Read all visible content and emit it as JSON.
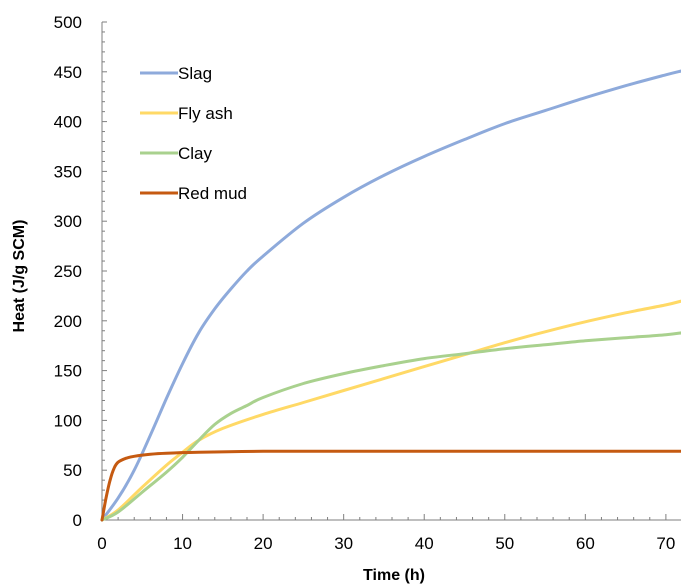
{
  "chart_data": {
    "type": "line",
    "xlabel": "Time (h)",
    "ylabel": "Heat  (J/g SCM)",
    "xlim": [
      0,
      72
    ],
    "ylim": [
      0,
      500
    ],
    "xticks": [
      0,
      10,
      20,
      30,
      40,
      50,
      60,
      70
    ],
    "yticks": [
      0,
      50,
      100,
      150,
      200,
      250,
      300,
      350,
      400,
      450,
      500
    ],
    "grid": false,
    "legend_position": "top-left",
    "series": [
      {
        "name": "Slag",
        "color": "#8eaadb",
        "points": [
          [
            0,
            0
          ],
          [
            2,
            22
          ],
          [
            4,
            50
          ],
          [
            6,
            85
          ],
          [
            8,
            122
          ],
          [
            10,
            157
          ],
          [
            12,
            188
          ],
          [
            14,
            212
          ],
          [
            16,
            232
          ],
          [
            18,
            250
          ],
          [
            20,
            265
          ],
          [
            25,
            298
          ],
          [
            30,
            324
          ],
          [
            35,
            346
          ],
          [
            40,
            365
          ],
          [
            45,
            382
          ],
          [
            50,
            398
          ],
          [
            55,
            411
          ],
          [
            60,
            424
          ],
          [
            65,
            436
          ],
          [
            70,
            447
          ],
          [
            72,
            451
          ]
        ]
      },
      {
        "name": "Fly ash",
        "color": "#ffd966",
        "points": [
          [
            0,
            0
          ],
          [
            2,
            10
          ],
          [
            5,
            33
          ],
          [
            8,
            55
          ],
          [
            10,
            68
          ],
          [
            12,
            80
          ],
          [
            15,
            92
          ],
          [
            20,
            106
          ],
          [
            25,
            118
          ],
          [
            30,
            130
          ],
          [
            35,
            142
          ],
          [
            40,
            154
          ],
          [
            45,
            166
          ],
          [
            50,
            178
          ],
          [
            55,
            189
          ],
          [
            60,
            199
          ],
          [
            65,
            208
          ],
          [
            70,
            216
          ],
          [
            72,
            220
          ]
        ]
      },
      {
        "name": "Clay",
        "color": "#a9d18e",
        "points": [
          [
            0,
            0
          ],
          [
            2,
            8
          ],
          [
            5,
            28
          ],
          [
            8,
            48
          ],
          [
            10,
            63
          ],
          [
            12,
            80
          ],
          [
            14,
            96
          ],
          [
            16,
            107
          ],
          [
            18,
            115
          ],
          [
            20,
            123
          ],
          [
            25,
            137
          ],
          [
            30,
            147
          ],
          [
            35,
            155
          ],
          [
            40,
            162
          ],
          [
            45,
            167
          ],
          [
            50,
            172
          ],
          [
            55,
            176
          ],
          [
            60,
            180
          ],
          [
            65,
            183
          ],
          [
            70,
            186
          ],
          [
            72,
            188
          ]
        ]
      },
      {
        "name": "Red mud",
        "color": "#c55a11",
        "points": [
          [
            0,
            0
          ],
          [
            0.5,
            22
          ],
          [
            1,
            40
          ],
          [
            1.5,
            52
          ],
          [
            2,
            58
          ],
          [
            3,
            62
          ],
          [
            4,
            64
          ],
          [
            6,
            66
          ],
          [
            8,
            67
          ],
          [
            12,
            68
          ],
          [
            20,
            69
          ],
          [
            30,
            69
          ],
          [
            40,
            69
          ],
          [
            50,
            69
          ],
          [
            60,
            69
          ],
          [
            72,
            69
          ]
        ]
      }
    ]
  }
}
